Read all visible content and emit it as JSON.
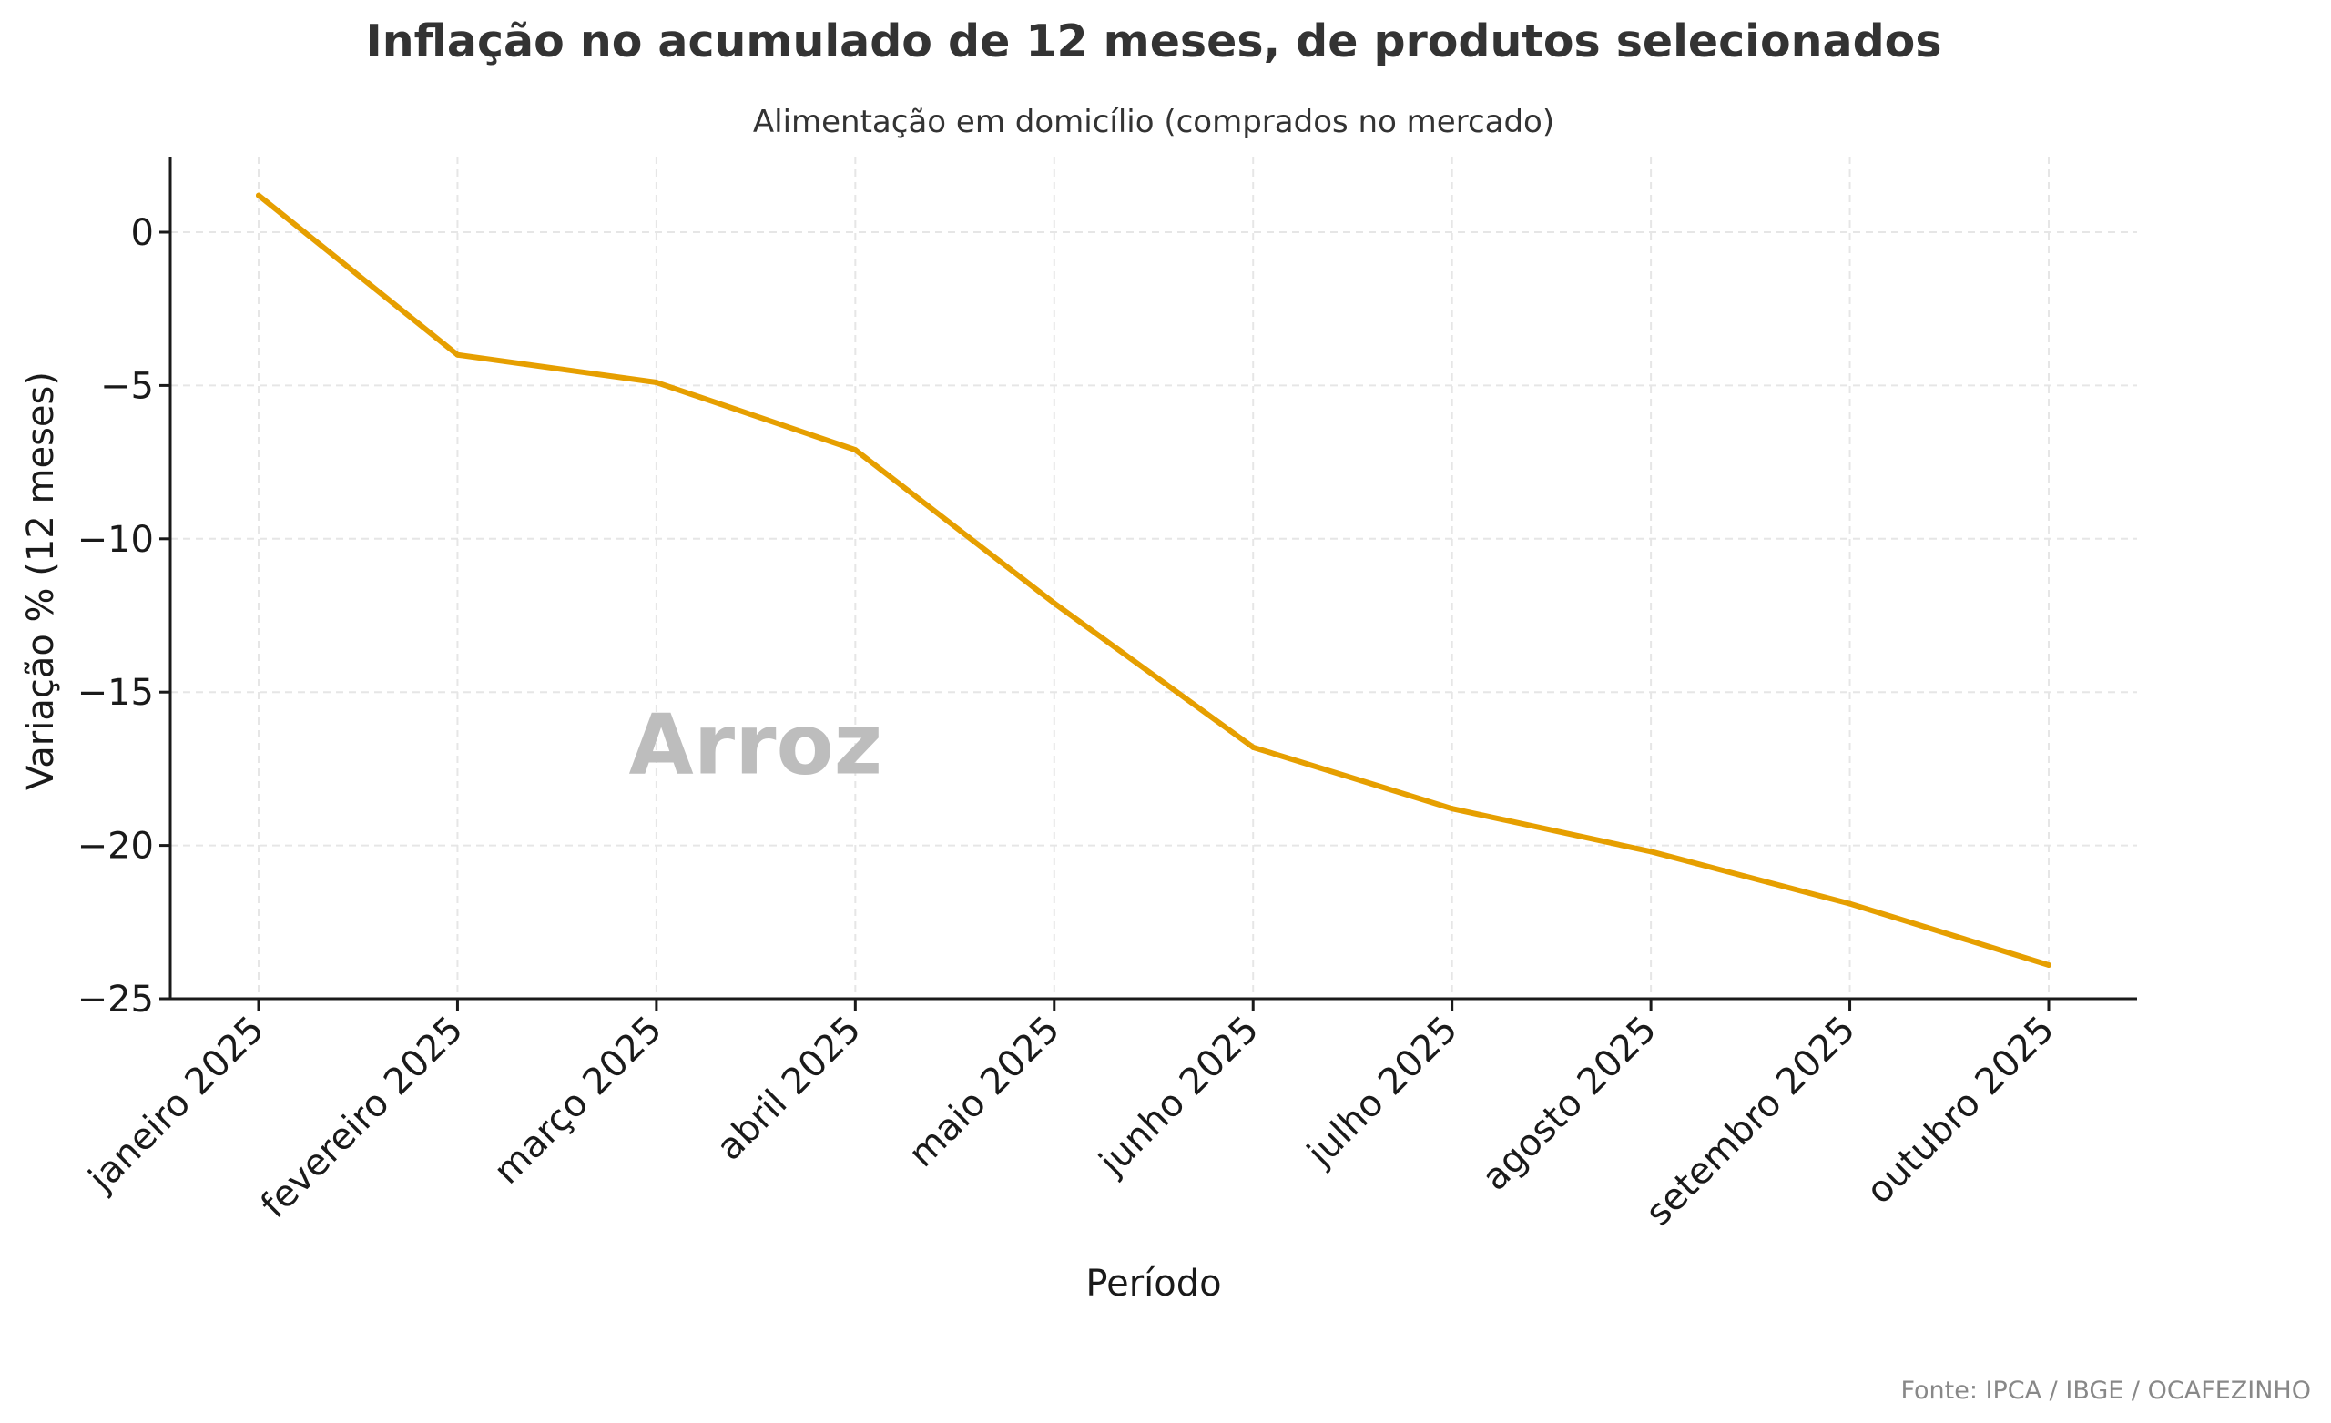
{
  "chart_data": {
    "type": "line",
    "title": "Inflação no acumulado de 12 meses, de produtos selecionados",
    "subtitle": "Alimentação em domicílio (comprados no mercado)",
    "xlabel": "Período",
    "ylabel": "Variação % (12 meses)",
    "categories": [
      "janeiro 2025",
      "fevereiro 2025",
      "março 2025",
      "abril 2025",
      "maio 2025",
      "junho 2025",
      "julho 2025",
      "agosto 2025",
      "setembro 2025",
      "outubro 2025"
    ],
    "yticks": [
      0,
      -5,
      -10,
      -15,
      -20,
      -25
    ],
    "ytick_labels": [
      "0",
      "−5",
      "−10",
      "−15",
      "−20",
      "−25"
    ],
    "ylim": [
      -25,
      2.5
    ],
    "grid": true,
    "series": [
      {
        "color": "#E69F00",
        "values": [
          1.2,
          -4.0,
          -4.9,
          -7.1,
          -12.1,
          -16.8,
          -18.8,
          -20.2,
          -21.9,
          -23.9
        ]
      }
    ],
    "annotations": [
      {
        "text": "Arroz",
        "x": "março 2025",
        "y": -16.5
      }
    ],
    "source": "Fonte: IPCA / IBGE / OCAFEZINHO"
  }
}
